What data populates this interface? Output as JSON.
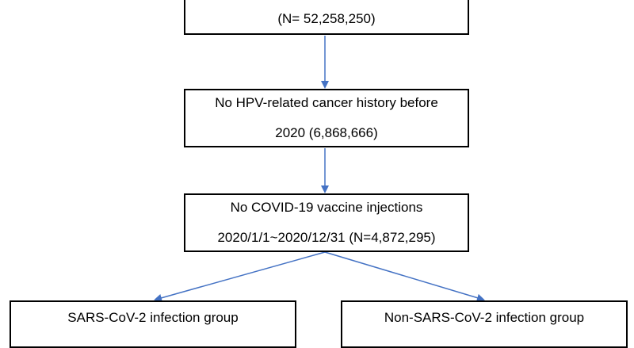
{
  "diagram": {
    "top_box": {
      "line1": "",
      "line2": "(N= 52,258,250)"
    },
    "box2": {
      "line1": "No HPV-related cancer history before",
      "line2": "2020 (6,868,666)"
    },
    "box3": {
      "line1": "No COVID-19 vaccine injections",
      "line2": "2020/1/1~2020/12/31 (N=4,872,295)"
    },
    "left_box": {
      "label": "SARS-CoV-2 infection group"
    },
    "right_box": {
      "label": "Non-SARS-CoV-2 infection group"
    },
    "arrow_color": "#4472C4"
  }
}
